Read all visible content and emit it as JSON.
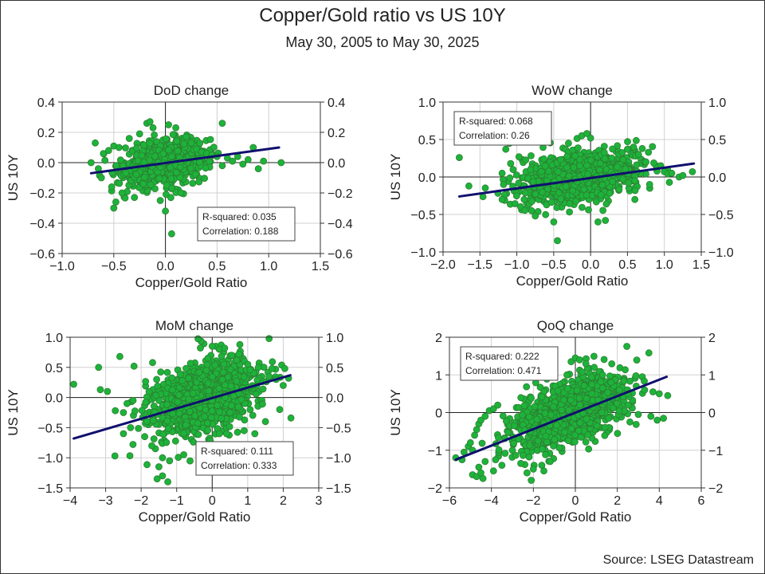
{
  "title": "Copper/Gold ratio vs US 10Y",
  "subtitle": "May 30, 2005 to May 30, 2025",
  "source": "Source: LSEG Datastream",
  "colors": {
    "point_fill": "#1db33a",
    "point_stroke": "#2e7d32",
    "fit_line": "#10106e",
    "grid": "#d0d0d0",
    "axis": "#333333"
  },
  "chart_data": [
    {
      "type": "scatter",
      "title": "DoD change",
      "xlabel": "Copper/Gold Ratio",
      "ylabel": "US 10Y",
      "xlim": [
        -1.0,
        1.5
      ],
      "ylim": [
        -0.6,
        0.4
      ],
      "xticks": [
        -1.0,
        -0.5,
        0.0,
        0.5,
        1.0,
        1.5
      ],
      "xtick_labels": [
        "−1.0",
        "−0.5",
        "0.0",
        "0.5",
        "1.0",
        "1.5"
      ],
      "yticks": [
        -0.6,
        -0.4,
        -0.2,
        0.0,
        0.2,
        0.4
      ],
      "ytick_labels": [
        "−0.6",
        "−0.4",
        "−0.2",
        "0.0",
        "0.2",
        "0.4"
      ],
      "grid": true,
      "fit_line": [
        [
          -0.72,
          -0.07
        ],
        [
          1.1,
          0.1
        ]
      ],
      "stats": {
        "r_squared": "R-squared: 0.035",
        "correlation": "Correlation: 0.188",
        "placement": "bottom-right"
      },
      "cluster": {
        "center": [
          0.0,
          0.0
        ],
        "spread": [
          0.2,
          0.07
        ],
        "count": 800
      },
      "points": [
        [
          -0.72,
          0.0
        ],
        [
          -0.68,
          0.13
        ],
        [
          -0.65,
          -0.04
        ],
        [
          -0.62,
          -0.1
        ],
        [
          -0.6,
          0.06
        ],
        [
          -0.55,
          0.08
        ],
        [
          -0.52,
          -0.16
        ],
        [
          -0.5,
          0.11
        ],
        [
          -0.5,
          -0.3
        ],
        [
          -0.48,
          -0.26
        ],
        [
          -0.45,
          0.1
        ],
        [
          -0.42,
          -0.2
        ],
        [
          -0.35,
          0.16
        ],
        [
          -0.3,
          -0.23
        ],
        [
          -0.25,
          0.19
        ],
        [
          -0.18,
          0.26
        ],
        [
          -0.15,
          0.27
        ],
        [
          -0.12,
          0.23
        ],
        [
          -0.05,
          -0.25
        ],
        [
          0.0,
          -0.32
        ],
        [
          0.03,
          0.25
        ],
        [
          0.06,
          -0.47
        ],
        [
          0.1,
          0.23
        ],
        [
          0.15,
          -0.2
        ],
        [
          0.2,
          0.17
        ],
        [
          0.25,
          0.13
        ],
        [
          0.3,
          0.09
        ],
        [
          0.35,
          0.07
        ],
        [
          0.4,
          0.06
        ],
        [
          0.45,
          0.05
        ],
        [
          0.5,
          0.04
        ],
        [
          0.55,
          0.26
        ],
        [
          0.55,
          -0.02
        ],
        [
          0.6,
          0.03
        ],
        [
          0.65,
          0.01
        ],
        [
          0.7,
          0.04
        ],
        [
          0.75,
          -0.01
        ],
        [
          0.8,
          0.02
        ],
        [
          0.85,
          0.1
        ],
        [
          0.95,
          0.01
        ],
        [
          0.9,
          -0.04
        ],
        [
          1.12,
          0.0
        ]
      ]
    },
    {
      "type": "scatter",
      "title": "WoW change",
      "xlabel": "Copper/Gold Ratio",
      "ylabel": "US 10Y",
      "xlim": [
        -2.0,
        1.5
      ],
      "ylim": [
        -1.0,
        1.0
      ],
      "xticks": [
        -2.0,
        -1.5,
        -1.0,
        -0.5,
        0.0,
        0.5,
        1.0,
        1.5
      ],
      "xtick_labels": [
        "−2.0",
        "−1.5",
        "−1.0",
        "−0.5",
        "0.0",
        "0.5",
        "1.0",
        "1.5"
      ],
      "yticks": [
        -1.0,
        -0.5,
        0.0,
        0.5,
        1.0
      ],
      "ytick_labels": [
        "−1.0",
        "−0.5",
        "0.0",
        "0.5",
        "1.0"
      ],
      "grid": true,
      "fit_line": [
        [
          -1.78,
          -0.26
        ],
        [
          1.4,
          0.18
        ]
      ],
      "stats": {
        "r_squared": "R-squared: 0.068",
        "correlation": "Correlation: 0.26",
        "placement": "top-left"
      },
      "cluster": {
        "center": [
          -0.15,
          0.0
        ],
        "spread": [
          0.38,
          0.16
        ],
        "count": 1000
      },
      "points": [
        [
          -1.78,
          0.26
        ],
        [
          -1.65,
          -0.12
        ],
        [
          -1.2,
          0.05
        ],
        [
          -1.15,
          0.37
        ],
        [
          -1.1,
          0.45
        ],
        [
          -1.18,
          -0.1
        ],
        [
          -1.2,
          -0.3
        ],
        [
          -1.05,
          0.1
        ],
        [
          -0.9,
          -0.3
        ],
        [
          -0.8,
          -0.45
        ],
        [
          -0.75,
          -0.52
        ],
        [
          -0.5,
          -0.6
        ],
        [
          -0.45,
          -0.85
        ],
        [
          -0.3,
          0.45
        ],
        [
          -0.12,
          0.55
        ],
        [
          -0.05,
          0.58
        ],
        [
          0.0,
          0.52
        ],
        [
          0.1,
          -0.6
        ],
        [
          0.2,
          -0.58
        ],
        [
          0.5,
          0.37
        ],
        [
          0.7,
          0.38
        ],
        [
          0.65,
          0.3
        ],
        [
          0.6,
          -0.3
        ],
        [
          0.9,
          0.08
        ],
        [
          1.0,
          0.07
        ],
        [
          1.05,
          0.04
        ],
        [
          1.1,
          0.05
        ],
        [
          1.2,
          0.0
        ],
        [
          1.25,
          0.02
        ],
        [
          1.38,
          0.07
        ],
        [
          0.8,
          -0.1
        ],
        [
          0.95,
          0.15
        ],
        [
          0.75,
          0.2
        ]
      ]
    },
    {
      "type": "scatter",
      "title": "MoM change",
      "xlabel": "Copper/Gold Ratio",
      "ylabel": "US 10Y",
      "xlim": [
        -4,
        3
      ],
      "ylim": [
        -1.5,
        1.0
      ],
      "xticks": [
        -4,
        -3,
        -2,
        -1,
        0,
        1,
        2,
        3
      ],
      "xtick_labels": [
        "−4",
        "−3",
        "−2",
        "−1",
        "0",
        "1",
        "2",
        "3"
      ],
      "yticks": [
        -1.5,
        -1.0,
        -0.5,
        0.0,
        0.5,
        1.0
      ],
      "ytick_labels": [
        "−1.5",
        "−1.0",
        "−0.5",
        "0.0",
        "0.5",
        "1.0"
      ],
      "grid": true,
      "fit_line": [
        [
          -3.9,
          -0.68
        ],
        [
          2.2,
          0.37
        ]
      ],
      "stats": {
        "r_squared": "R-squared: 0.111",
        "correlation": "Correlation: 0.333",
        "placement": "bottom-right"
      },
      "cluster": {
        "center": [
          -0.2,
          0.0
        ],
        "spread": [
          0.75,
          0.3
        ],
        "count": 1100
      },
      "points": [
        [
          -3.9,
          0.22
        ],
        [
          -3.2,
          0.5
        ],
        [
          -3.15,
          0.13
        ],
        [
          -2.95,
          0.1
        ],
        [
          -2.6,
          0.68
        ],
        [
          -2.2,
          0.52
        ],
        [
          -2.5,
          -0.25
        ],
        [
          -2.3,
          -0.5
        ],
        [
          -2.5,
          -0.6
        ],
        [
          -1.9,
          -0.65
        ],
        [
          -1.6,
          -0.85
        ],
        [
          -1.5,
          -1.15
        ],
        [
          -1.4,
          -1.3
        ],
        [
          -1.55,
          -1.35
        ],
        [
          -1.25,
          -1.4
        ],
        [
          -1.2,
          -1.05
        ],
        [
          -0.8,
          -0.95
        ],
        [
          -1.7,
          -0.8
        ],
        [
          -1.4,
          -1.0
        ],
        [
          0.0,
          0.85
        ],
        [
          0.2,
          0.8
        ],
        [
          0.35,
          0.82
        ],
        [
          0.55,
          0.7
        ],
        [
          0.75,
          0.72
        ],
        [
          1.0,
          0.55
        ],
        [
          1.3,
          0.5
        ],
        [
          1.6,
          0.35
        ],
        [
          1.8,
          0.3
        ],
        [
          2.0,
          0.2
        ],
        [
          2.15,
          0.32
        ],
        [
          1.9,
          -0.2
        ],
        [
          1.5,
          -0.4
        ],
        [
          1.2,
          -0.6
        ],
        [
          0.9,
          -0.55
        ],
        [
          0.5,
          -0.8
        ],
        [
          0.2,
          -0.6
        ]
      ]
    },
    {
      "type": "scatter",
      "title": "QoQ change",
      "xlabel": "Copper/Gold Ratio",
      "ylabel": "US 10Y",
      "xlim": [
        -6,
        6
      ],
      "ylim": [
        -2,
        2
      ],
      "xticks": [
        -6,
        -4,
        -2,
        0,
        2,
        4,
        6
      ],
      "xtick_labels": [
        "−6",
        "−4",
        "−2",
        "0",
        "2",
        "4",
        "6"
      ],
      "yticks": [
        -2,
        -1,
        0,
        1,
        2
      ],
      "ytick_labels": [
        "−2",
        "−1",
        "0",
        "1",
        "2"
      ],
      "grid": true,
      "fit_line": [
        [
          -5.7,
          -1.25
        ],
        [
          4.35,
          0.95
        ]
      ],
      "stats": {
        "r_squared": "R-squared: 0.222",
        "correlation": "Correlation: 0.471",
        "placement": "top-left"
      },
      "cluster": {
        "center": [
          -0.3,
          0.05
        ],
        "spread": [
          1.3,
          0.42
        ],
        "count": 1100
      },
      "points": [
        [
          -5.7,
          -1.2
        ],
        [
          -5.4,
          -1.25
        ],
        [
          -5.3,
          -1.05
        ],
        [
          -5.1,
          -0.9
        ],
        [
          -5.0,
          -0.8
        ],
        [
          -4.9,
          -1.0
        ],
        [
          -4.8,
          -0.6
        ],
        [
          -4.7,
          -0.45
        ],
        [
          -4.6,
          -0.3
        ],
        [
          -4.5,
          -0.2
        ],
        [
          -4.3,
          -0.1
        ],
        [
          -4.1,
          0.05
        ],
        [
          -3.9,
          0.1
        ],
        [
          -3.7,
          0.2
        ],
        [
          -4.9,
          -1.65
        ],
        [
          -4.7,
          -1.7
        ],
        [
          -4.5,
          -1.6
        ],
        [
          -4.4,
          -1.75
        ],
        [
          -4.6,
          -1.45
        ],
        [
          -4.3,
          -1.3
        ],
        [
          -3.9,
          -1.55
        ],
        [
          -3.8,
          -1.25
        ],
        [
          -3.5,
          -1.4
        ],
        [
          -3.0,
          -1.0
        ],
        [
          -2.6,
          -1.35
        ],
        [
          -2.3,
          -1.6
        ],
        [
          -2.1,
          -1.8
        ],
        [
          -2.0,
          -1.5
        ],
        [
          -1.6,
          -1.4
        ],
        [
          -1.5,
          -1.55
        ],
        [
          -1.2,
          -1.3
        ],
        [
          -0.4,
          1.0
        ],
        [
          -0.2,
          1.35
        ],
        [
          0.0,
          1.45
        ],
        [
          0.2,
          1.4
        ],
        [
          0.5,
          1.3
        ],
        [
          0.9,
          1.2
        ],
        [
          1.3,
          1.0
        ],
        [
          1.7,
          0.8
        ],
        [
          2.1,
          0.6
        ],
        [
          2.5,
          0.5
        ],
        [
          2.9,
          0.7
        ],
        [
          3.3,
          0.6
        ],
        [
          3.7,
          0.55
        ],
        [
          4.0,
          0.5
        ],
        [
          4.4,
          0.45
        ],
        [
          3.6,
          -0.1
        ],
        [
          4.2,
          -0.15
        ],
        [
          3.9,
          -0.2
        ],
        [
          3.0,
          -0.05
        ],
        [
          2.6,
          -0.25
        ]
      ]
    }
  ]
}
